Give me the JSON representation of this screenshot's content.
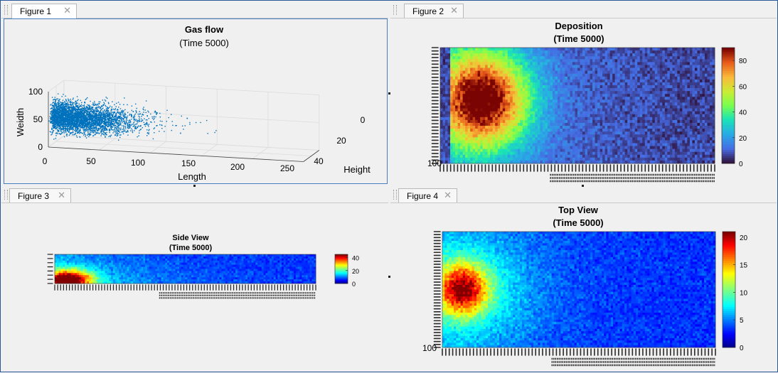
{
  "figures": [
    {
      "tab": "Figure 1",
      "title": "Gas flow",
      "subtitle": "(Time 5000)"
    },
    {
      "tab": "Figure 2",
      "title": "Deposition",
      "subtitle": "(Time 5000)"
    },
    {
      "tab": "Figure 3",
      "title": "Side View",
      "subtitle": "(Time 5000)"
    },
    {
      "tab": "Figure 4",
      "title": "Top View",
      "subtitle": "(Time 5000)"
    }
  ],
  "colors": {
    "scatter": "#0072bd",
    "frame": "#2b579a"
  },
  "icons": {
    "close": "close-icon",
    "grip": "grip-icon"
  },
  "chart_data": [
    {
      "type": "scatter",
      "title": "Gas flow",
      "subtitle": "(Time 5000)",
      "xlabel": "Length",
      "ylabel": "Weidth",
      "zlabel": "Height",
      "x_ticks": [
        "0",
        "50",
        "100",
        "150",
        "200",
        "250"
      ],
      "y_ticks": [
        "0",
        "50",
        "100"
      ],
      "z_ticks": [
        "0",
        "20",
        "40"
      ],
      "xlim": [
        0,
        250
      ],
      "ylim": [
        0,
        100
      ],
      "zlim": [
        0,
        40
      ],
      "grid": true,
      "note": "dense 3D point cloud concentrated at low Length"
    },
    {
      "type": "heatmap",
      "title": "Deposition",
      "subtitle": "(Time 5000)",
      "y_end_label": "100",
      "colorbar_ticks": [
        "0",
        "20",
        "40",
        "60",
        "80"
      ],
      "clim": [
        0,
        90
      ],
      "colormap": "turbo",
      "hotspot": {
        "x_frac": 0.15,
        "y_frac": 0.45,
        "peak": 85
      }
    },
    {
      "type": "heatmap",
      "title": "Side View",
      "subtitle": "(Time 5000)",
      "colorbar_ticks": [
        "0",
        "20",
        "40"
      ],
      "clim": [
        0,
        45
      ],
      "colormap": "jet",
      "hotspot": {
        "x_frac": 0.05,
        "y_frac": 0.9,
        "peak": 45
      }
    },
    {
      "type": "heatmap",
      "title": "Top View",
      "subtitle": "(Time 5000)",
      "y_end_label": "100",
      "colorbar_ticks": [
        "0",
        "5",
        "10",
        "15",
        "20"
      ],
      "clim": [
        0,
        21
      ],
      "colormap": "jet",
      "hotspot": {
        "x_frac": 0.07,
        "y_frac": 0.5,
        "peak": 20
      }
    }
  ]
}
